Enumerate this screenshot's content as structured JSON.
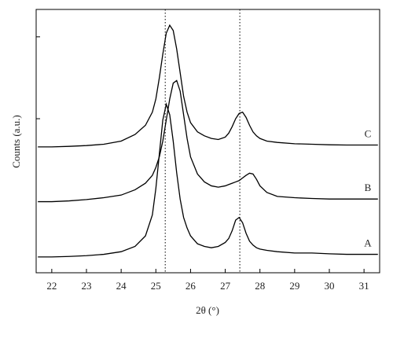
{
  "chart_data": {
    "type": "line",
    "xlabel": "2θ (°)",
    "ylabel": "Counts (a.u.)",
    "xlim": [
      21.55,
      31.45
    ],
    "xticks": [
      22,
      23,
      24,
      25,
      26,
      27,
      28,
      29,
      30,
      31
    ],
    "ylim": [
      0,
      100
    ],
    "yticks": [
      58.5,
      89.6
    ],
    "vlines": [
      25.27,
      27.42
    ],
    "x": [
      21.6,
      22.0,
      22.5,
      23.0,
      23.5,
      24.0,
      24.4,
      24.7,
      24.9,
      25.0,
      25.1,
      25.2,
      25.3,
      25.4,
      25.5,
      25.6,
      25.7,
      25.8,
      25.9,
      26.0,
      26.2,
      26.4,
      26.6,
      26.8,
      27.0,
      27.1,
      27.2,
      27.3,
      27.4,
      27.5,
      27.6,
      27.7,
      27.8,
      27.9,
      28.0,
      28.2,
      28.5,
      29.0,
      29.5,
      30.0,
      30.5,
      31.0,
      31.4
    ],
    "series": [
      {
        "name": "A",
        "color": "#000000",
        "values": [
          6,
          6,
          6.2,
          6.5,
          7,
          8,
          10,
          14,
          22,
          32,
          45,
          58,
          64,
          60,
          50,
          38,
          28,
          21,
          17,
          14,
          11,
          10,
          9.5,
          10,
          11.5,
          13,
          16,
          20,
          21,
          19,
          15,
          12,
          10.5,
          9.5,
          9,
          8.5,
          8,
          7.5,
          7.5,
          7.2,
          7,
          7,
          7
        ]
      },
      {
        "name": "B",
        "color": "#000000",
        "values": [
          27,
          27,
          27.3,
          27.8,
          28.5,
          29.5,
          31.5,
          34,
          37,
          40,
          44,
          50,
          58,
          66,
          72,
          73,
          69,
          60,
          51,
          44,
          37.5,
          34.5,
          33,
          32.5,
          33,
          33.5,
          34,
          34.5,
          35,
          36,
          37,
          37.8,
          37.5,
          35.5,
          33,
          30.5,
          29,
          28.5,
          28.2,
          28,
          28,
          28,
          28
        ]
      },
      {
        "name": "C",
        "color": "#000000",
        "values": [
          47.8,
          47.8,
          48,
          48.3,
          48.8,
          50,
          52.5,
          56,
          61,
          66,
          74,
          83,
          91,
          94,
          92,
          85,
          76,
          67,
          61,
          57,
          53.5,
          52,
          51,
          50.6,
          51.5,
          53,
          55.5,
          58.5,
          60.5,
          61,
          59,
          56,
          53.5,
          52,
          51,
          50,
          49.5,
          49,
          48.8,
          48.6,
          48.5,
          48.5,
          48.5
        ]
      }
    ]
  }
}
